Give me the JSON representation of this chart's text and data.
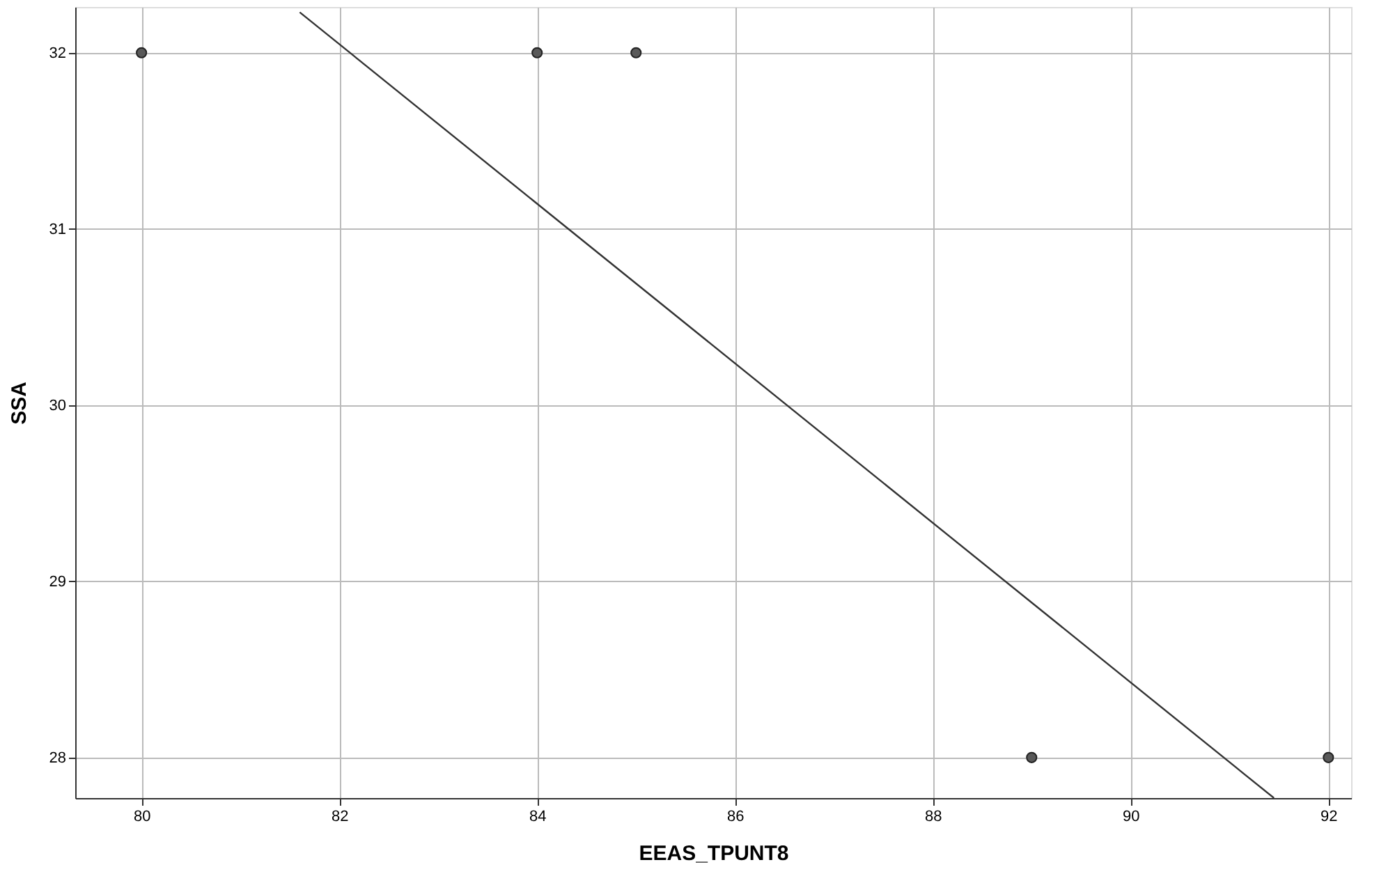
{
  "chart_data": {
    "type": "scatter",
    "xlabel": "EEAS_TPUNT8",
    "ylabel": "SSA",
    "xlim": [
      79.33,
      92.23
    ],
    "xticks": [
      80,
      82,
      84,
      86,
      88,
      90,
      92
    ],
    "ylim": [
      27.77,
      32.26
    ],
    "yticks": [
      28,
      29,
      30,
      31,
      32
    ],
    "grid": true,
    "series": [
      {
        "marker": "circle",
        "color": "#595959",
        "x": [
          80,
          84,
          85,
          89,
          92
        ],
        "values": [
          32,
          32,
          32,
          28,
          28
        ]
      },
      {
        "type": "line",
        "color": "#333333",
        "line_style": "solid",
        "x": [
          81.6,
          91.45
        ],
        "values": [
          32.23,
          27.77
        ]
      }
    ]
  }
}
